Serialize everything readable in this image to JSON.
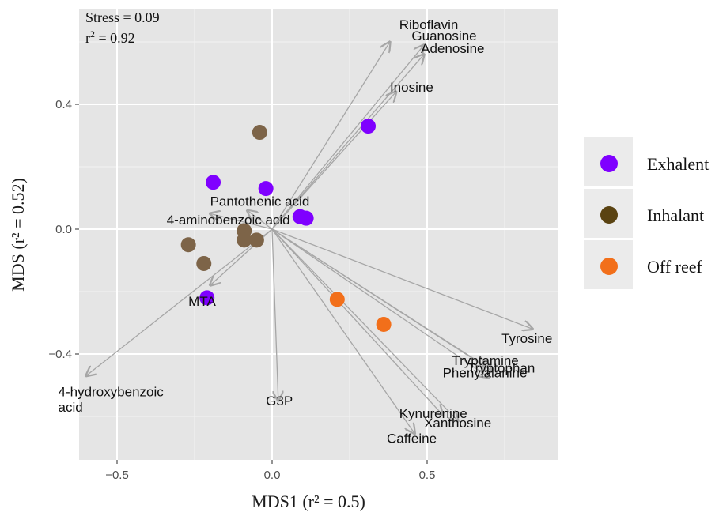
{
  "chart_data": {
    "type": "scatter",
    "subtype": "nmds-biplot",
    "xlabel": "MDS1 (r² = 0.5)",
    "ylabel": "MDS (r² = 0.52)",
    "xlim": [
      -0.62,
      0.92
    ],
    "ylim": [
      -0.74,
      0.7
    ],
    "x_ticks": [
      -0.5,
      0.0,
      0.5
    ],
    "x_tick_labels": [
      "−0.5",
      "0.0",
      "0.5"
    ],
    "y_ticks": [
      -0.4,
      0.0,
      0.4
    ],
    "y_tick_labels": [
      "−0.4",
      "0.0",
      "0.4"
    ],
    "grid": true,
    "annotation": {
      "stress": "Stress = 0.09",
      "r2_prefix": "r",
      "r2_exp": "2",
      "r2_suffix": " = 0.92"
    },
    "legend_position": "right",
    "series": [
      {
        "name": "Exhalent",
        "color": "#7F00FF",
        "points": [
          {
            "x": -0.19,
            "y": 0.15
          },
          {
            "x": -0.02,
            "y": 0.13
          },
          {
            "x": 0.31,
            "y": 0.33
          },
          {
            "x": 0.09,
            "y": 0.04
          },
          {
            "x": 0.11,
            "y": 0.035
          },
          {
            "x": -0.21,
            "y": -0.22
          }
        ]
      },
      {
        "name": "Inhalant",
        "color": "#7D6448",
        "legend_color": "#5A4312",
        "points": [
          {
            "x": -0.04,
            "y": 0.31
          },
          {
            "x": -0.09,
            "y": -0.005
          },
          {
            "x": -0.09,
            "y": -0.035
          },
          {
            "x": -0.05,
            "y": -0.035
          },
          {
            "x": -0.27,
            "y": -0.05
          },
          {
            "x": -0.22,
            "y": -0.11
          }
        ]
      },
      {
        "name": "Off reef",
        "color": "#F26F1A",
        "points": [
          {
            "x": 0.21,
            "y": -0.225
          },
          {
            "x": 0.36,
            "y": -0.305
          }
        ]
      }
    ],
    "vectors": [
      {
        "name": "Riboflavin",
        "x": 0.38,
        "y": 0.6,
        "lx": 0.41,
        "ly": 0.64
      },
      {
        "name": "Guanosine",
        "x": 0.49,
        "y": 0.59,
        "lx": 0.45,
        "ly": 0.605
      },
      {
        "name": "Adenosine",
        "x": 0.49,
        "y": 0.56,
        "lx": 0.48,
        "ly": 0.565
      },
      {
        "name": "Inosine",
        "x": 0.4,
        "y": 0.44,
        "lx": 0.38,
        "ly": 0.44
      },
      {
        "name": "Pantothenic acid",
        "x": -0.08,
        "y": 0.06,
        "lx": -0.2,
        "ly": 0.075
      },
      {
        "name": "4-aminobenzoic acid",
        "x": -0.2,
        "y": 0.05,
        "lx": -0.34,
        "ly": 0.015
      },
      {
        "name": "MTA",
        "x": -0.2,
        "y": -0.18,
        "lx": -0.27,
        "ly": -0.245
      },
      {
        "name": "4-hydroxybenzoic",
        "x": -0.6,
        "y": -0.47,
        "lx": -0.69,
        "ly": -0.535
      },
      {
        "name": "acid",
        "x": null,
        "y": null,
        "lx": -0.69,
        "ly": -0.585
      },
      {
        "name": "G3P",
        "x": 0.02,
        "y": -0.55,
        "lx": -0.02,
        "ly": -0.565
      },
      {
        "name": "Tyrosine",
        "x": 0.84,
        "y": -0.32,
        "lx": 0.74,
        "ly": -0.365
      },
      {
        "name": "Tryptamine",
        "x": 0.69,
        "y": -0.44,
        "lx": 0.58,
        "ly": -0.435
      },
      {
        "name": "Tryptophan",
        "x": 0.71,
        "y": -0.455,
        "lx": 0.63,
        "ly": -0.46
      },
      {
        "name": "Phenylalanine",
        "x": 0.7,
        "y": -0.475,
        "lx": 0.55,
        "ly": -0.475
      },
      {
        "name": "Kynurenine",
        "x": 0.55,
        "y": -0.595,
        "lx": 0.41,
        "ly": -0.605
      },
      {
        "name": "Xanthosine",
        "x": 0.6,
        "y": -0.615,
        "lx": 0.49,
        "ly": -0.635
      },
      {
        "name": "Caffeine",
        "x": 0.46,
        "y": -0.655,
        "lx": 0.37,
        "ly": -0.685
      }
    ]
  }
}
